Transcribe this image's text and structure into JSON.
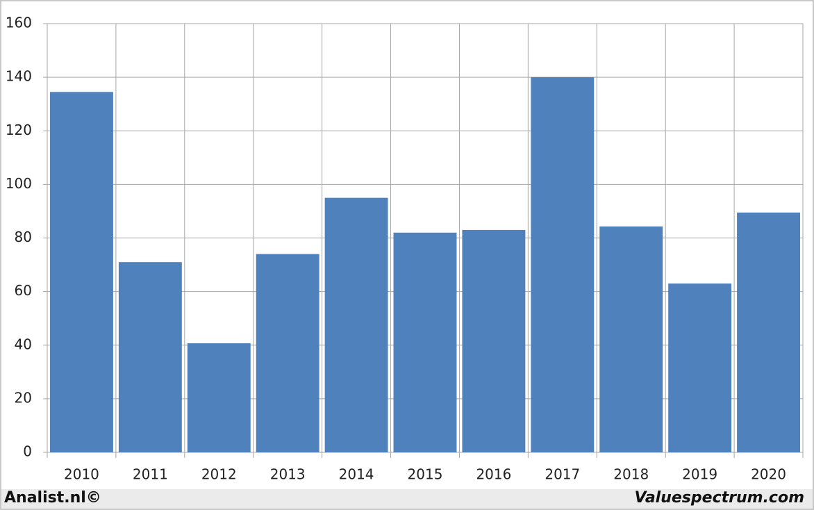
{
  "chart_data": {
    "type": "bar",
    "categories": [
      "2010",
      "2011",
      "2012",
      "2013",
      "2014",
      "2015",
      "2016",
      "2017",
      "2018",
      "2019",
      "2020"
    ],
    "values": [
      134.5,
      71,
      40.7,
      74,
      95,
      82,
      83,
      140,
      84.3,
      63,
      89.5
    ],
    "color": "#4f81bd",
    "ylim": [
      0,
      160
    ],
    "yticks": [
      0,
      20,
      40,
      60,
      80,
      100,
      120,
      140,
      160
    ],
    "grid": true
  },
  "footer": {
    "left": "Analist.nl©",
    "right": "Valuespectrum.com"
  }
}
